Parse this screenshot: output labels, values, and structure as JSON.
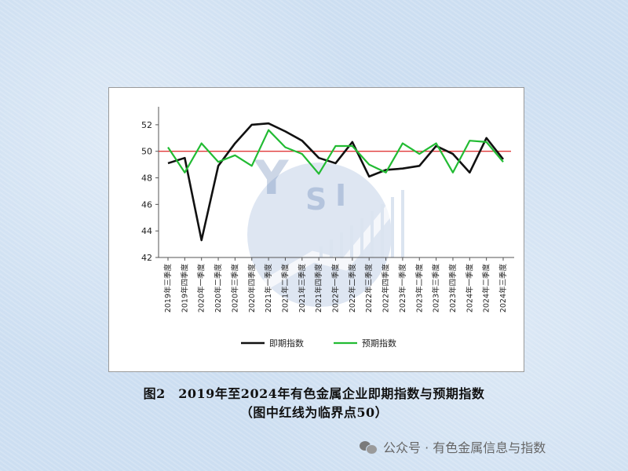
{
  "chart_data": {
    "type": "line",
    "y_ticks": [
      42,
      44,
      46,
      48,
      50,
      52
    ],
    "ylim": [
      42,
      53
    ],
    "categories": [
      "2019年三季度",
      "2019年四季度",
      "2020年一季度",
      "2020年二季度",
      "2020年三季度",
      "2020年四季度",
      "2021年一季度",
      "2021年二季度",
      "2021年三季度",
      "2021年四季度",
      "2022年一季度",
      "2022年二季度",
      "2022年三季度",
      "2022年四季度",
      "2023年一季度",
      "2023年二季度",
      "2023年三季度",
      "2023年四季度",
      "2024年一季度",
      "2024年二季度",
      "2024年三季度"
    ],
    "series": [
      {
        "name": "即期指数",
        "color": "#111111",
        "values": [
          49.1,
          49.5,
          43.3,
          48.9,
          50.6,
          52.0,
          52.1,
          51.5,
          50.8,
          49.5,
          49.1,
          50.7,
          48.1,
          48.6,
          48.7,
          48.9,
          50.4,
          49.8,
          48.4,
          51.0,
          49.4
        ]
      },
      {
        "name": "预期指数",
        "color": "#22bb33",
        "values": [
          50.3,
          48.4,
          50.6,
          49.2,
          49.7,
          48.9,
          51.6,
          50.3,
          49.8,
          48.3,
          50.4,
          50.4,
          49.0,
          48.4,
          50.6,
          49.8,
          50.6,
          48.4,
          50.8,
          50.7,
          49.2
        ]
      }
    ],
    "reference_line": {
      "value": 50,
      "color": "#e03a3a"
    },
    "legend_position": "bottom-center",
    "grid": false
  },
  "watermark": {
    "letters": [
      "Y",
      "S",
      "I"
    ]
  },
  "caption": {
    "line1": "图2　2019年至2024年有色金属企业即期指数与预期指数",
    "line2": "（图中红线为临界点50）"
  },
  "wechat": {
    "text": "公众号 · 有色金属信息与指数"
  }
}
